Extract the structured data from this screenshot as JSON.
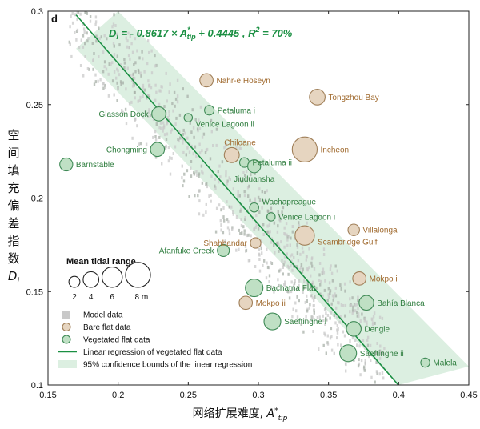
{
  "chart_data": {
    "type": "scatter",
    "panel_label": "d",
    "equation": {
      "di": "D",
      "di_sub": "i",
      "eq_mid": " = - 0.8617 × ",
      "a_star": "A",
      "a_sup": "*",
      "a_sub": "tip",
      "eq_end": " + 0.4445 ,  ",
      "r2_r": "R",
      "r2_sup": "2",
      "r2_end": " = 70%"
    },
    "xlabel": {
      "main": "网络扩展难度, ",
      "sym": "A",
      "sup": "*",
      "sub": "tip"
    },
    "ylabel": {
      "chars": [
        "空",
        "间",
        "填",
        "充",
        "偏",
        "差",
        "指",
        "数"
      ],
      "sym": "D",
      "sub": "i"
    },
    "xlim": [
      0.15,
      0.45
    ],
    "ylim": [
      0.1,
      0.3
    ],
    "xticks": [
      "0.15",
      "0.2",
      "0.25",
      "0.3",
      "0.35",
      "0.4",
      "0.45"
    ],
    "yticks": [
      "0.1",
      "0.15",
      "0.2",
      "0.25",
      "0.3"
    ],
    "regression": {
      "slope": -0.8617,
      "intercept": 0.4445,
      "ci_upper": [
        [
          0.2,
          0.3
        ],
        [
          0.45,
          0.11
        ]
      ],
      "ci_lower": [
        [
          0.17,
          0.28
        ],
        [
          0.4,
          0.1
        ]
      ]
    },
    "series": [
      {
        "name": "Bare flat data",
        "points": [
          {
            "label": "Nahr-e Hoseyn",
            "x": 0.263,
            "y": 0.263,
            "tidal": 3.0
          },
          {
            "label": "Tongzhou Bay",
            "x": 0.342,
            "y": 0.254,
            "tidal": 4.0
          },
          {
            "label": "Chiloane",
            "x": 0.281,
            "y": 0.223,
            "tidal": 3.7
          },
          {
            "label": "Incheon",
            "x": 0.333,
            "y": 0.226,
            "tidal": 8.0
          },
          {
            "label": "Villalonga",
            "x": 0.368,
            "y": 0.183,
            "tidal": 2.2
          },
          {
            "label": "Shahbandar",
            "x": 0.298,
            "y": 0.176,
            "tidal": 1.8
          },
          {
            "label": "Scambridge Gulf",
            "x": 0.333,
            "y": 0.18,
            "tidal": 5.6
          },
          {
            "label": "Mokpo i",
            "x": 0.372,
            "y": 0.157,
            "tidal": 3.0
          },
          {
            "label": "Mokpo ii",
            "x": 0.291,
            "y": 0.144,
            "tidal": 3.0
          }
        ]
      },
      {
        "name": "Vegetated flat data",
        "points": [
          {
            "label": "Glasson Dock",
            "x": 0.229,
            "y": 0.245,
            "tidal": 3.3
          },
          {
            "label": "Petaluma i",
            "x": 0.265,
            "y": 0.247,
            "tidal": 1.4
          },
          {
            "label": "Venice Lagoon ii",
            "x": 0.25,
            "y": 0.243,
            "tidal": 0.8
          },
          {
            "label": "Chongming",
            "x": 0.228,
            "y": 0.226,
            "tidal": 3.3
          },
          {
            "label": "Petaluma ii",
            "x": 0.29,
            "y": 0.219,
            "tidal": 1.4
          },
          {
            "label": "Barnstable",
            "x": 0.163,
            "y": 0.218,
            "tidal": 2.8
          },
          {
            "label": "Jiuduansha",
            "x": 0.297,
            "y": 0.217,
            "tidal": 2.8
          },
          {
            "label": "Wachapreague",
            "x": 0.297,
            "y": 0.195,
            "tidal": 1.2
          },
          {
            "label": "Venice Lagoon i",
            "x": 0.309,
            "y": 0.19,
            "tidal": 0.8
          },
          {
            "label": "Afanfuke Creek",
            "x": 0.275,
            "y": 0.172,
            "tidal": 2.4
          },
          {
            "label": "Bachatna Flat",
            "x": 0.297,
            "y": 0.152,
            "tidal": 4.8
          },
          {
            "label": "Bahía Blanca",
            "x": 0.377,
            "y": 0.144,
            "tidal": 3.6
          },
          {
            "label": "Saeftinghe i",
            "x": 0.31,
            "y": 0.134,
            "tidal": 4.5
          },
          {
            "label": "Dengie",
            "x": 0.368,
            "y": 0.13,
            "tidal": 3.6
          },
          {
            "label": "Saeftinghe ii",
            "x": 0.364,
            "y": 0.117,
            "tidal": 4.5
          },
          {
            "label": "Malela",
            "x": 0.419,
            "y": 0.112,
            "tidal": 1.2
          }
        ]
      }
    ],
    "size_legend": {
      "title": "Mean tidal range",
      "values": [
        2,
        4,
        6,
        8
      ],
      "labels": [
        "2",
        "4",
        "6",
        "8 m"
      ]
    },
    "legend": [
      {
        "key": "model",
        "label": "Model data"
      },
      {
        "key": "bare",
        "label": "Bare flat data"
      },
      {
        "key": "veg",
        "label": "Vegetated flat data"
      },
      {
        "key": "reg",
        "label": "Linear regression of vegetated flat data"
      },
      {
        "key": "ci",
        "label": "95% confidence bounds of the linear regression"
      }
    ],
    "colors": {
      "bare_fill": "#e6d5c0",
      "bare_stroke": "#a07f58",
      "bare_text": "#a06a2e",
      "veg_fill": "#bfe0c4",
      "veg_stroke": "#3f8a56",
      "veg_text": "#2e7d3e",
      "regression": "#1a8f42",
      "ci": "#dcefe1",
      "model": "#c9c9c9",
      "model_dark": "#a8b0a8"
    }
  }
}
